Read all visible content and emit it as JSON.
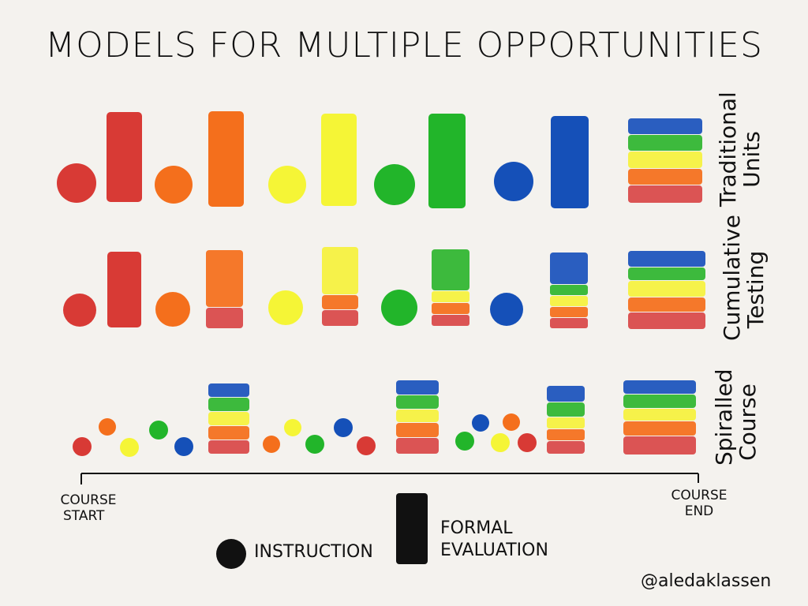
{
  "title": "MODELS FOR MULTIPLE OPPORTUNITIES",
  "colors": {
    "red": "#d83a35",
    "orange": "#f46f1c",
    "yellow": "#f5f536",
    "green": "#22b52a",
    "blue": "#1550b8",
    "layer_red": "#db5454",
    "layer_orange": "#f5782a",
    "layer_yellow": "#f6f24a",
    "layer_green": "#3dba3d",
    "layer_blue": "#2a5ec0",
    "ink": "#111111"
  },
  "rows": {
    "traditional": {
      "label_line1": "Traditional",
      "label_line2": "Units"
    },
    "cumulative": {
      "label_line1": "Cumulative",
      "label_line2": "Testing"
    },
    "spiralled": {
      "label_line1": "Spiralled",
      "label_line2": "Course"
    }
  },
  "timeline": {
    "start_line1": "COURSE",
    "start_line2": "START",
    "end_line1": "COURSE",
    "end_line2": "END"
  },
  "legend": {
    "instruction": "INSTRUCTION",
    "evaluation_line1": "FORMAL",
    "evaluation_line2": "EVALUATION"
  },
  "credit": "@aledaklassen"
}
